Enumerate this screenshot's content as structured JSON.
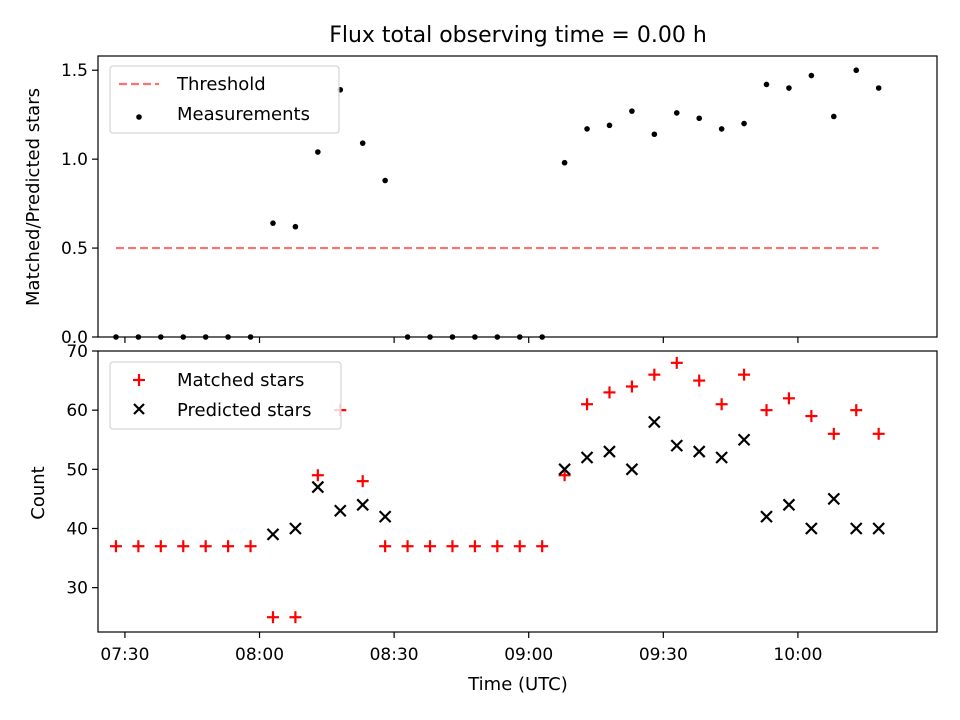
{
  "figure": {
    "title": "Flux total observing time = 0.00 h"
  },
  "chart_data": [
    {
      "type": "scatter",
      "name": "ratio",
      "title": "Flux total observing time = 0.00 h",
      "xlabel": "",
      "ylabel": "Matched/Predicted stars",
      "xlim": [
        "07:24",
        "10:31"
      ],
      "ylim": [
        0,
        1.58
      ],
      "yticks": [
        0.0,
        0.5,
        1.0,
        1.5
      ],
      "ytick_labels": [
        "0.0",
        "0.5",
        "1.0",
        "1.5"
      ],
      "legend": "upper left",
      "grid": false,
      "colors": {
        "threshold": "#ff7070",
        "measurements": "#000000"
      },
      "series": [
        {
          "name": "Threshold",
          "kind": "dashed-line",
          "x": [
            "07:28",
            "10:18"
          ],
          "y": [
            0.5,
            0.5
          ]
        },
        {
          "name": "Measurements",
          "kind": "dot",
          "x": [
            "07:28",
            "07:33",
            "07:38",
            "07:43",
            "07:48",
            "07:53",
            "07:58",
            "08:03",
            "08:08",
            "08:13",
            "08:18",
            "08:23",
            "08:28",
            "08:33",
            "08:38",
            "08:43",
            "08:48",
            "08:53",
            "08:58",
            "09:03",
            "09:08",
            "09:13",
            "09:18",
            "09:23",
            "09:28",
            "09:33",
            "09:38",
            "09:43",
            "09:48",
            "09:53",
            "09:58",
            "10:03",
            "10:08",
            "10:13",
            "10:18"
          ],
          "y": [
            0,
            0,
            0,
            0,
            0,
            0,
            0,
            0.64,
            0.62,
            1.04,
            1.39,
            1.09,
            0.88,
            0,
            0,
            0,
            0,
            0,
            0,
            0,
            0.98,
            1.17,
            1.19,
            1.27,
            1.14,
            1.26,
            1.23,
            1.17,
            1.2,
            1.42,
            1.4,
            1.47,
            1.24,
            1.5,
            1.4
          ]
        }
      ]
    },
    {
      "type": "scatter",
      "name": "counts",
      "title": "",
      "xlabel": "Time (UTC)",
      "ylabel": "Count",
      "xlim": [
        "07:24",
        "10:31"
      ],
      "ylim": [
        22.5,
        70
      ],
      "yticks": [
        30,
        40,
        50,
        60,
        70
      ],
      "ytick_labels": [
        "30",
        "40",
        "50",
        "60",
        "70"
      ],
      "xticks": [
        "07:30",
        "08:00",
        "08:30",
        "09:00",
        "09:30",
        "10:00"
      ],
      "xtick_labels": [
        "07:30",
        "08:00",
        "08:30",
        "09:00",
        "09:30",
        "10:00"
      ],
      "legend": "upper left",
      "grid": false,
      "colors": {
        "matched": "#ff0000",
        "predicted": "#000000"
      },
      "series": [
        {
          "name": "Matched stars",
          "marker": "plus",
          "x": [
            "07:28",
            "07:33",
            "07:38",
            "07:43",
            "07:48",
            "07:53",
            "07:58",
            "08:03",
            "08:08",
            "08:13",
            "08:18",
            "08:23",
            "08:28",
            "08:33",
            "08:38",
            "08:43",
            "08:48",
            "08:53",
            "08:58",
            "09:03",
            "09:08",
            "09:13",
            "09:18",
            "09:23",
            "09:28",
            "09:33",
            "09:38",
            "09:43",
            "09:48",
            "09:53",
            "09:58",
            "10:03",
            "10:08",
            "10:13",
            "10:18"
          ],
          "y": [
            37,
            37,
            37,
            37,
            37,
            37,
            37,
            25,
            25,
            49,
            60,
            48,
            37,
            37,
            37,
            37,
            37,
            37,
            37,
            37,
            49,
            61,
            63,
            64,
            66,
            68,
            65,
            61,
            66,
            60,
            62,
            59,
            56,
            60,
            56
          ]
        },
        {
          "name": "Predicted stars",
          "marker": "x",
          "x": [
            "08:03",
            "08:08",
            "08:13",
            "08:18",
            "08:23",
            "08:28",
            "09:08",
            "09:13",
            "09:18",
            "09:23",
            "09:28",
            "09:33",
            "09:38",
            "09:43",
            "09:48",
            "09:53",
            "09:58",
            "10:03",
            "10:08",
            "10:13",
            "10:18"
          ],
          "y": [
            39,
            40,
            47,
            43,
            44,
            42,
            50,
            52,
            53,
            50,
            58,
            54,
            53,
            52,
            55,
            42,
            44,
            40,
            45,
            40,
            40
          ]
        }
      ]
    }
  ]
}
